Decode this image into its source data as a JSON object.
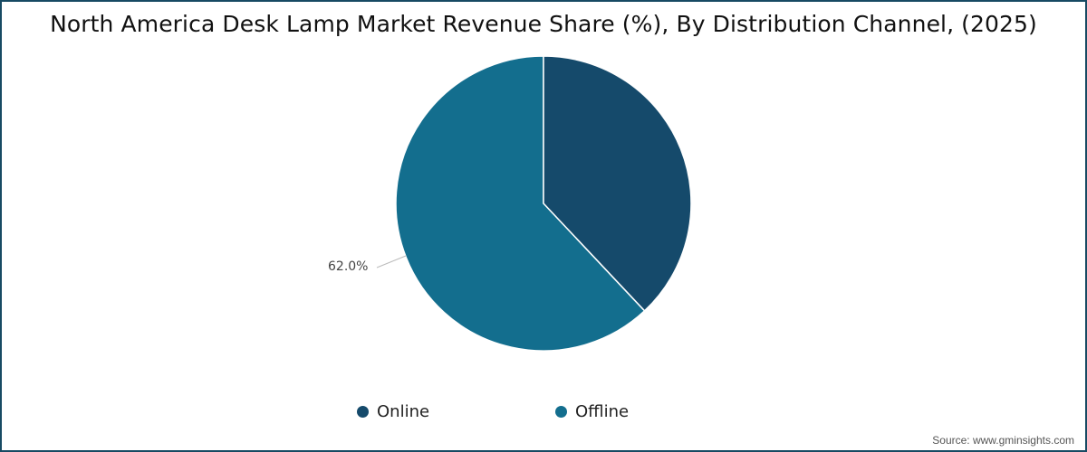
{
  "title": "North America Desk Lamp Market Revenue Share (%), By Distribution Channel, (2025)",
  "source": "Source: www.gminsights.com",
  "legend": [
    {
      "label": "Online",
      "color": "#154a6b"
    },
    {
      "label": "Offline",
      "color": "#136e8e"
    }
  ],
  "labels": {
    "offline_pct": "62.0%"
  },
  "chart_data": {
    "type": "pie",
    "title": "North America Desk Lamp Market Revenue Share (%), By Distribution Channel, (2025)",
    "categories": [
      "Online",
      "Offline"
    ],
    "values": [
      38.0,
      62.0
    ],
    "colors": [
      "#154a6b",
      "#136e8e"
    ],
    "data_labels": {
      "Offline": "62.0%"
    },
    "legend_position": "bottom"
  }
}
